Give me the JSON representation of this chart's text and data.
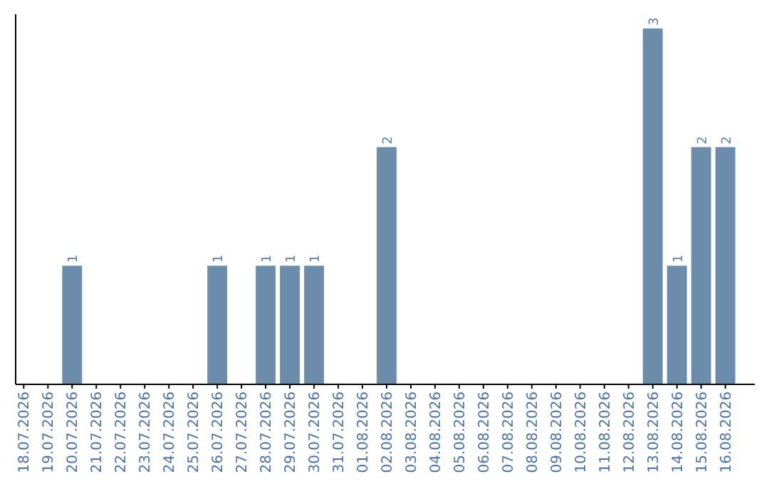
{
  "chart_data": {
    "type": "bar",
    "categories": [
      "18.07.2026",
      "19.07.2026",
      "20.07.2026",
      "21.07.2026",
      "22.07.2026",
      "23.07.2026",
      "24.07.2026",
      "25.07.2026",
      "26.07.2026",
      "27.07.2026",
      "28.07.2026",
      "29.07.2026",
      "30.07.2026",
      "31.07.2026",
      "01.08.2026",
      "02.08.2026",
      "03.08.2026",
      "04.08.2026",
      "05.08.2026",
      "06.08.2026",
      "07.08.2026",
      "08.08.2026",
      "09.08.2026",
      "10.08.2026",
      "11.08.2026",
      "12.08.2026",
      "13.08.2026",
      "14.08.2026",
      "15.08.2026",
      "16.08.2026"
    ],
    "values": [
      0,
      0,
      1,
      0,
      0,
      0,
      0,
      0,
      1,
      0,
      1,
      1,
      1,
      0,
      0,
      2,
      0,
      0,
      0,
      0,
      0,
      0,
      0,
      0,
      0,
      0,
      3,
      1,
      2,
      2
    ],
    "value_labels": [
      null,
      null,
      "1",
      null,
      null,
      null,
      null,
      null,
      "1",
      null,
      "1",
      "1",
      "1",
      null,
      null,
      "2",
      null,
      null,
      null,
      null,
      null,
      null,
      null,
      null,
      null,
      null,
      "3",
      "1",
      "2",
      "2"
    ],
    "color": "#6b8cab"
  }
}
